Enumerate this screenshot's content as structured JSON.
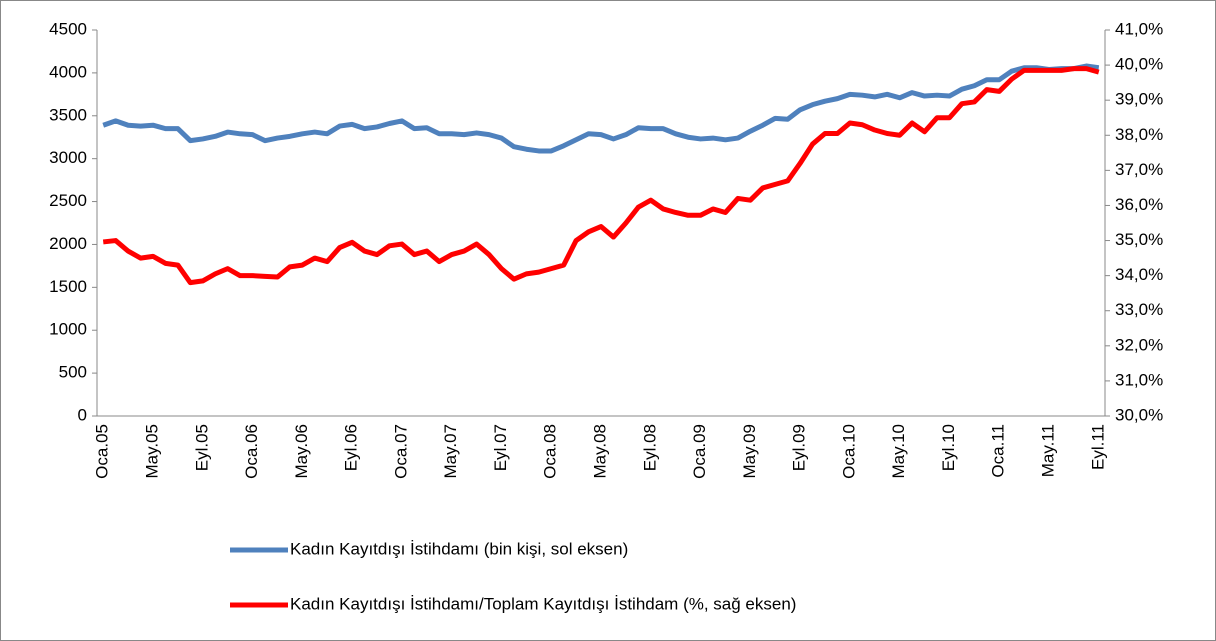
{
  "chart_data": {
    "type": "line",
    "categories": [
      "Oca.05",
      null,
      null,
      null,
      "May.05",
      null,
      null,
      null,
      "Eyl.05",
      null,
      null,
      null,
      "Oca.06",
      null,
      null,
      null,
      "May.06",
      null,
      null,
      null,
      "Eyl.06",
      null,
      null,
      null,
      "Oca.07",
      null,
      null,
      null,
      "May.07",
      null,
      null,
      null,
      "Eyl.07",
      null,
      null,
      null,
      "Oca.08",
      null,
      null,
      null,
      "May.08",
      null,
      null,
      null,
      "Eyl.08",
      null,
      null,
      null,
      "Oca.09",
      null,
      null,
      null,
      "May.09",
      null,
      null,
      null,
      "Eyl.09",
      null,
      null,
      null,
      "Oca.10",
      null,
      null,
      null,
      "May.10",
      null,
      null,
      null,
      "Eyl.10",
      null,
      null,
      null,
      "Oca.11",
      null,
      null,
      null,
      "May.11",
      null,
      null,
      null,
      "Eyl.11"
    ],
    "series": [
      {
        "name": "Kadın Kayıtdışı İstihdamı (bin kişi, sol eksen)",
        "color": "#4f81bd",
        "values": [
          3390,
          3440,
          3390,
          3380,
          3390,
          3350,
          3350,
          3210,
          3230,
          3260,
          3310,
          3290,
          3280,
          3210,
          3240,
          3260,
          3290,
          3310,
          3290,
          3380,
          3400,
          3350,
          3370,
          3410,
          3440,
          3350,
          3360,
          3290,
          3290,
          3280,
          3300,
          3280,
          3240,
          3140,
          3110,
          3090,
          3090,
          3150,
          3220,
          3290,
          3280,
          3230,
          3280,
          3360,
          3350,
          3350,
          3290,
          3250,
          3230,
          3240,
          3220,
          3240,
          3320,
          3390,
          3470,
          3460,
          3570,
          3630,
          3670,
          3700,
          3750,
          3740,
          3720,
          3750,
          3710,
          3770,
          3730,
          3740,
          3730,
          3810,
          3850,
          3920,
          3920,
          4020,
          4060,
          4060,
          4040,
          4050,
          4050,
          4080,
          4060
        ]
      },
      {
        "name": "Kadın Kayıtdışı İstihdamı/Toplam Kayıtdışı İstihdam (%, sağ eksen)",
        "color": "#ff0000",
        "axis": "y2",
        "values": [
          34.96,
          35.0,
          34.7,
          34.5,
          34.55,
          34.35,
          34.3,
          33.8,
          33.85,
          34.05,
          34.2,
          34.0,
          34.0,
          33.98,
          33.96,
          34.25,
          34.3,
          34.5,
          34.4,
          34.8,
          34.95,
          34.7,
          34.6,
          34.85,
          34.9,
          34.6,
          34.7,
          34.4,
          34.6,
          34.7,
          34.9,
          34.6,
          34.2,
          33.9,
          34.05,
          34.1,
          34.2,
          34.3,
          35.0,
          35.25,
          35.4,
          35.1,
          35.5,
          35.95,
          36.15,
          35.9,
          35.8,
          35.72,
          35.72,
          35.9,
          35.8,
          36.2,
          36.15,
          36.5,
          36.6,
          36.7,
          37.2,
          37.75,
          38.05,
          38.05,
          38.35,
          38.3,
          38.15,
          38.05,
          38.0,
          38.35,
          38.1,
          38.5,
          38.5,
          38.9,
          38.95,
          39.3,
          39.25,
          39.6,
          39.85,
          39.85,
          39.85,
          39.85,
          39.9,
          39.9,
          39.8
        ]
      }
    ],
    "ylim": [
      0,
      4500
    ],
    "yticks": [
      0,
      500,
      1000,
      1500,
      2000,
      2500,
      3000,
      3500,
      4000,
      4500
    ],
    "y2lim": [
      30,
      41
    ],
    "y2ticks": [
      {
        "value": 30,
        "label": "30,0%"
      },
      {
        "value": 31,
        "label": "31,0%"
      },
      {
        "value": 32,
        "label": "32,0%"
      },
      {
        "value": 33,
        "label": "33,0%"
      },
      {
        "value": 34,
        "label": "34,0%"
      },
      {
        "value": 35,
        "label": "35,0%"
      },
      {
        "value": 36,
        "label": "36,0%"
      },
      {
        "value": 37,
        "label": "37,0%"
      },
      {
        "value": 38,
        "label": "38,0%"
      },
      {
        "value": 39,
        "label": "39,0%"
      },
      {
        "value": 40,
        "label": "40,0%"
      },
      {
        "value": 41,
        "label": "41,0%"
      }
    ],
    "legend": "bottom"
  }
}
